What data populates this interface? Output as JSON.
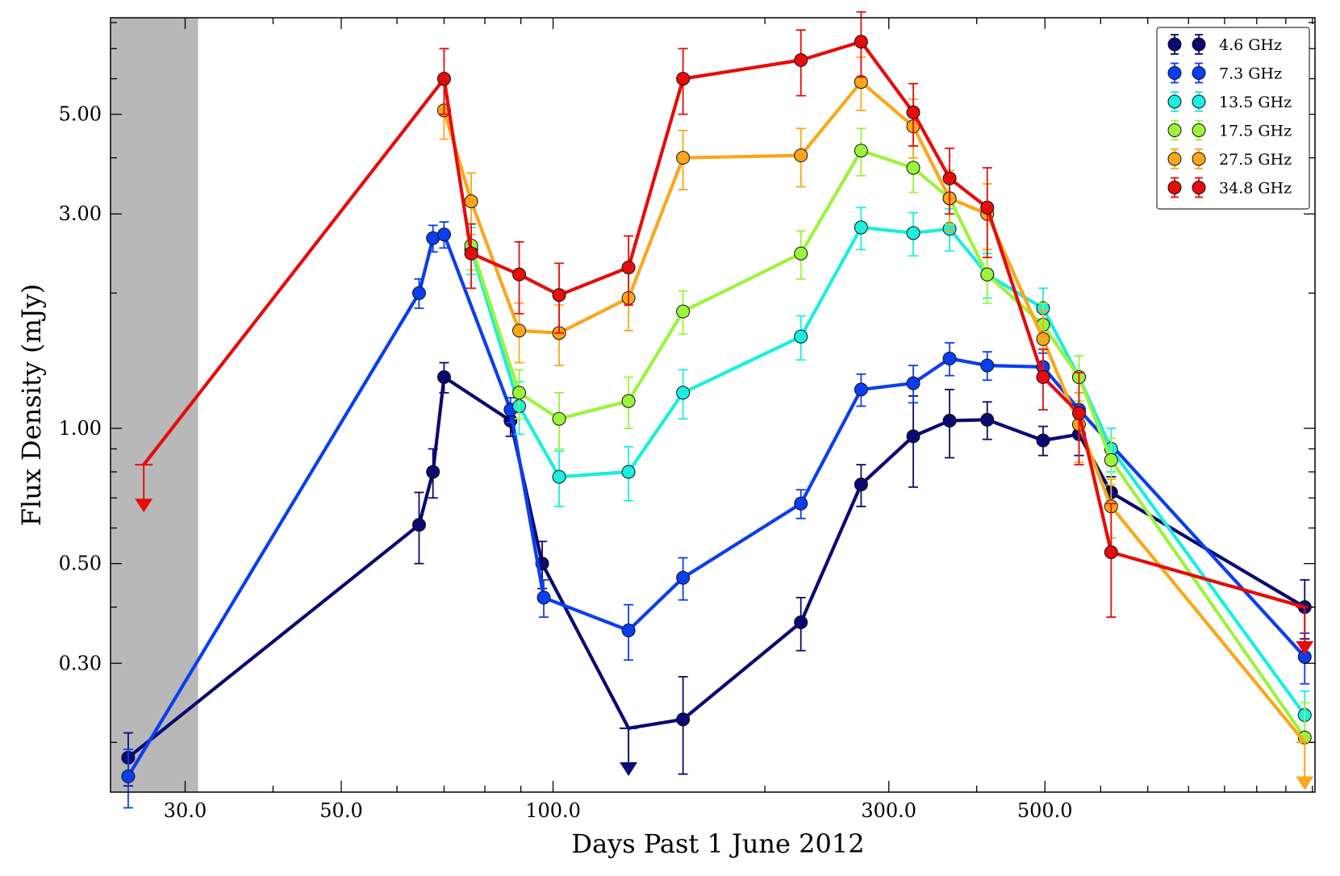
{
  "chart_data": {
    "type": "line",
    "title": "",
    "xlabel": "Days Past 1 June 2012",
    "ylabel": "Flux Density (mJy)",
    "xscale": "log",
    "yscale": "log",
    "xlim": [
      23.5,
      1210
    ],
    "ylim": [
      0.155,
      8.2
    ],
    "xticks": [
      30,
      50,
      100,
      300,
      500
    ],
    "xtick_labels": [
      "30.0",
      "50.0",
      "100.0",
      "300.0",
      "500.0"
    ],
    "yticks": [
      0.3,
      0.5,
      1.0,
      3.0,
      5.0
    ],
    "ytick_labels": [
      "0.30",
      "0.50",
      "1.00",
      "3.00",
      "5.00"
    ],
    "shaded_region": {
      "x0": 23.5,
      "x1": 31.3,
      "color": "#b8b8b8"
    },
    "legend_position": "top-right",
    "series": [
      {
        "name": "4.6 GHz",
        "color": "#0a0a72",
        "x": [
          24.9,
          64.5,
          67.5,
          70.0,
          87.0,
          96.5,
          128.0,
          153.0,
          225.0,
          274.0,
          325.0,
          366.0,
          414.0,
          497.0,
          559.0,
          621.0,
          1170.0
        ],
        "y": [
          0.185,
          0.61,
          0.8,
          1.3,
          1.04,
          0.5,
          0.215,
          0.225,
          0.37,
          0.75,
          0.96,
          1.04,
          1.045,
          0.94,
          0.97,
          0.72,
          0.4
        ],
        "err": [
          0.025,
          0.11,
          0.1,
          0.1,
          0.08,
          0.06,
          0,
          0.055,
          0.05,
          0.08,
          0.22,
          0.18,
          0.1,
          0.07,
          0.1,
          0.06,
          0.06
        ],
        "upper_limits": [
          128.0
        ]
      },
      {
        "name": "7.3 GHz",
        "color": "#0b3ef0",
        "x": [
          24.9,
          64.5,
          67.5,
          70.0,
          87.0,
          97.0,
          128.0,
          153.0,
          225.0,
          274.0,
          325.0,
          366.0,
          414.0,
          497.0,
          559.0,
          1170.0
        ],
        "y": [
          0.168,
          2.0,
          2.65,
          2.7,
          1.1,
          0.42,
          0.355,
          0.465,
          0.68,
          1.22,
          1.26,
          1.43,
          1.38,
          1.37,
          1.1,
          0.31
        ],
        "err": [
          0.025,
          0.15,
          0.18,
          0.18,
          0.07,
          0.04,
          0.05,
          0.05,
          0.05,
          0.1,
          0.12,
          0.12,
          0.1,
          0.1,
          0.1,
          0.04
        ]
      },
      {
        "name": "13.5 GHz",
        "color": "#1aeee0",
        "x": [
          76.5,
          89.5,
          102.0,
          128.0,
          153.0,
          225.0,
          274.0,
          325.0,
          366.0,
          414.0,
          497.0,
          559.0,
          621.0,
          1170.0
        ],
        "y": [
          2.5,
          1.12,
          0.78,
          0.8,
          1.2,
          1.6,
          2.8,
          2.72,
          2.78,
          2.2,
          1.85,
          1.3,
          0.9,
          0.23
        ],
        "err": [
          0.3,
          0.15,
          0.11,
          0.11,
          0.15,
          0.18,
          0.3,
          0.3,
          0.3,
          0.25,
          0.2,
          0.15,
          0.1,
          0.03
        ]
      },
      {
        "name": "17.5 GHz",
        "color": "#9cf33c",
        "x": [
          76.5,
          89.5,
          102.0,
          128.0,
          153.0,
          225.0,
          274.0,
          325.0,
          366.0,
          414.0,
          497.0,
          559.0,
          621.0,
          1170.0
        ],
        "y": [
          2.55,
          1.2,
          1.05,
          1.15,
          1.82,
          2.45,
          4.15,
          3.8,
          3.25,
          2.2,
          1.7,
          1.3,
          0.85,
          0.205
        ],
        "err": [
          0.3,
          0.15,
          0.15,
          0.15,
          0.2,
          0.3,
          0.5,
          0.45,
          0.4,
          0.3,
          0.2,
          0.15,
          0.1,
          0.04
        ]
      },
      {
        "name": "27.5 GHz",
        "color": "#fba61a",
        "x": [
          70.0,
          76.5,
          89.5,
          102.0,
          128.0,
          153.0,
          225.0,
          274.0,
          325.0,
          366.0,
          414.0,
          497.0,
          559.0,
          621.0,
          1170.0
        ],
        "y": [
          5.1,
          3.2,
          1.65,
          1.63,
          1.95,
          4.0,
          4.05,
          5.9,
          4.7,
          3.25,
          3.0,
          1.58,
          1.02,
          0.67,
          0.2
        ],
        "err": [
          0.7,
          0.5,
          0.25,
          0.25,
          0.3,
          0.6,
          0.6,
          0.8,
          0.7,
          0.5,
          0.5,
          0.25,
          0.18,
          0.1,
          0
        ],
        "upper_limits": [
          1170.0
        ]
      },
      {
        "name": "34.8 GHz",
        "color": "#e60c0c",
        "x": [
          26.2,
          70.0,
          76.5,
          89.5,
          102.0,
          128.0,
          153.0,
          225.0,
          274.0,
          325.0,
          366.0,
          414.0,
          497.0,
          559.0,
          621.0,
          1170.0
        ],
        "y": [
          0.83,
          6.0,
          2.45,
          2.2,
          1.98,
          2.28,
          6.0,
          6.6,
          7.25,
          5.05,
          3.6,
          3.1,
          1.3,
          1.08,
          0.53,
          0.4
        ],
        "err": [
          0,
          1.0,
          0.4,
          0.4,
          0.35,
          0.4,
          1.0,
          1.1,
          1.2,
          0.8,
          0.6,
          0.7,
          0.2,
          0.25,
          0.15,
          0
        ],
        "upper_limits": [
          26.2,
          1170.0
        ]
      }
    ]
  }
}
